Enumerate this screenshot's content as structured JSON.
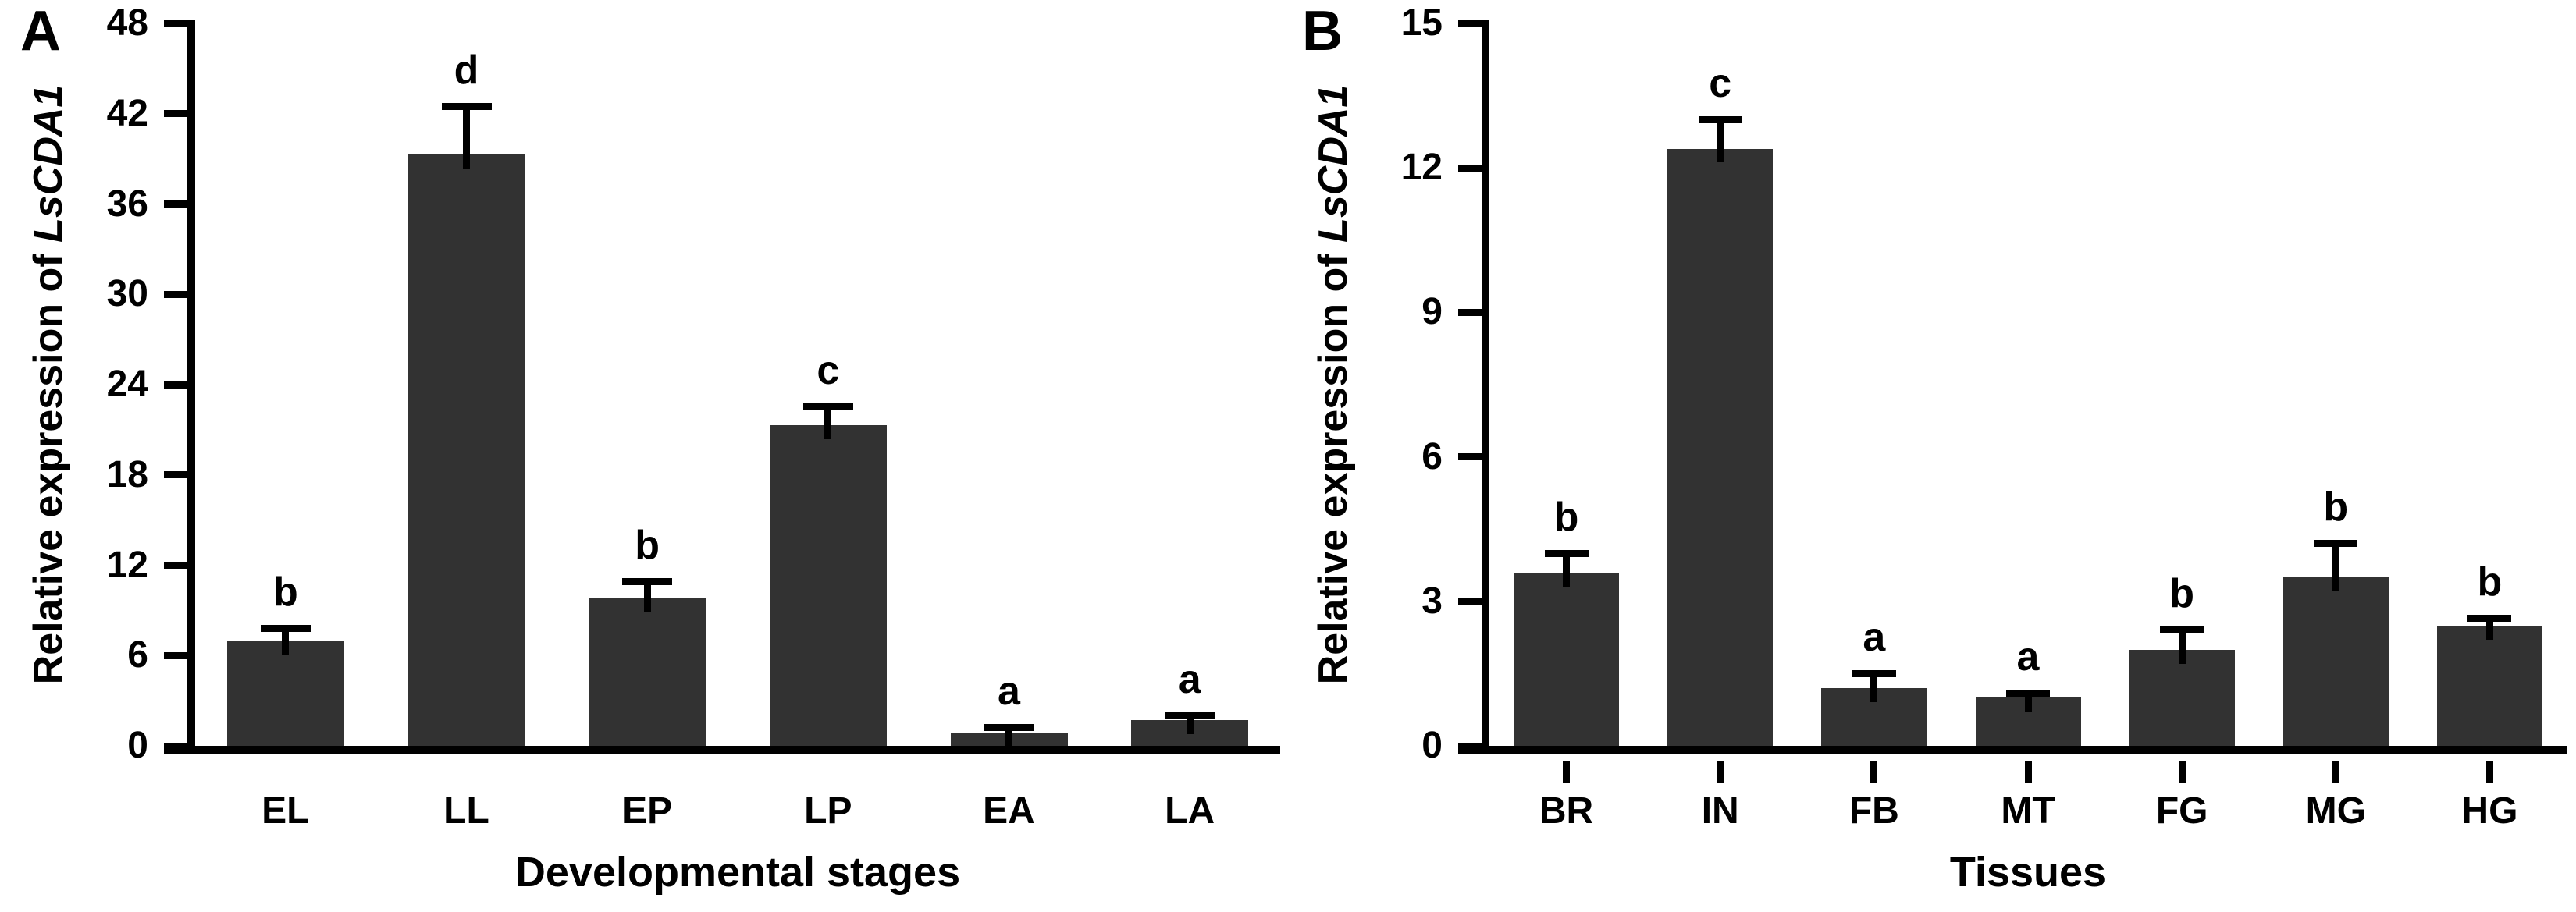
{
  "bar_color": "#323232",
  "axis_color": "#000000",
  "chart_data": [
    {
      "type": "bar",
      "panel_label": "A",
      "title": "",
      "categories": [
        "EL",
        "LL",
        "EP",
        "LP",
        "EA",
        "LA"
      ],
      "values": [
        7.0,
        39.3,
        9.8,
        21.3,
        0.9,
        1.7
      ],
      "errors_upper": [
        0.8,
        3.2,
        1.1,
        1.2,
        0.3,
        0.3
      ],
      "significance_letters": [
        "b",
        "d",
        "b",
        "c",
        "a",
        "a"
      ],
      "xlabel": "Developmental stages",
      "ylabel": "Relative expression of LsCDA1",
      "ylabel_parts": {
        "prefix": "Relative expression of ",
        "gene": "LsCDA1"
      },
      "ylim": [
        0,
        48
      ],
      "ytick_step": 6,
      "ytick_labels": [
        "0",
        "6",
        "12",
        "18",
        "24",
        "30",
        "36",
        "42",
        "48"
      ],
      "grid": false,
      "legend": "none",
      "x_axis_category_ticks": false
    },
    {
      "type": "bar",
      "panel_label": "B",
      "title": "",
      "categories": [
        "BR",
        "IN",
        "FB",
        "MT",
        "FG",
        "MG",
        "HG"
      ],
      "values": [
        3.6,
        12.4,
        1.2,
        1.0,
        2.0,
        3.5,
        2.5
      ],
      "errors_upper": [
        0.4,
        0.6,
        0.3,
        0.1,
        0.4,
        0.7,
        0.15
      ],
      "significance_letters": [
        "b",
        "c",
        "a",
        "a",
        "b",
        "b",
        "b"
      ],
      "xlabel": "Tissues",
      "ylabel": "Relative expression of LsCDA1",
      "ylabel_parts": {
        "prefix": "Relative expression of ",
        "gene": "LsCDA1"
      },
      "ylim": [
        0,
        15
      ],
      "ytick_step": 3,
      "ytick_labels": [
        "0",
        "3",
        "6",
        "9",
        "12",
        "15"
      ],
      "grid": false,
      "legend": "none",
      "x_axis_category_ticks": true
    }
  ]
}
